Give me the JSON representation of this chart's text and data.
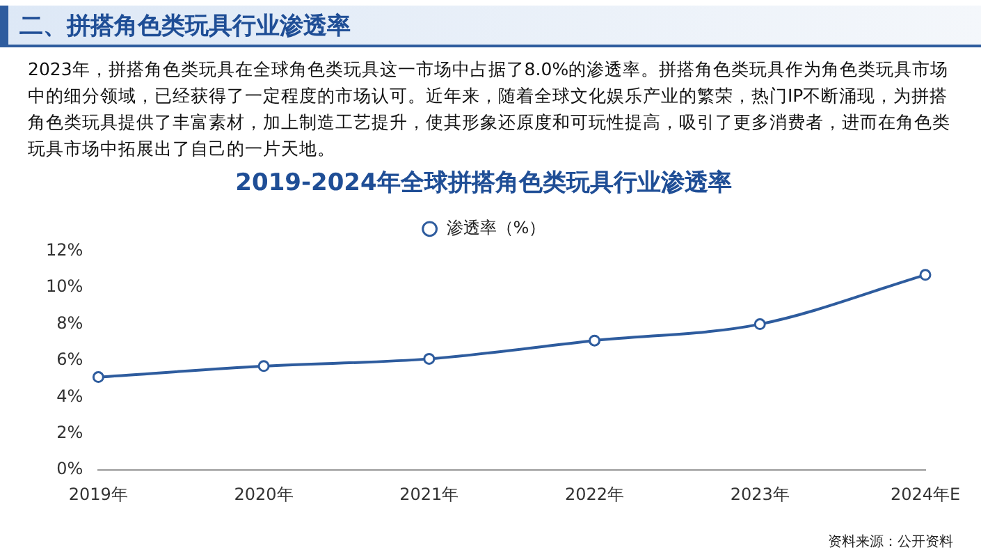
{
  "chart_data": {
    "type": "line",
    "title": "2019-2024年全球拼搭角色类玩具行业渗透率",
    "annotations": [
      "二、拼搭角色类玩具行业渗透率",
      "2023年，拼搭角色类玩具在全球角色类玩具这一市场中占据了8.0%的渗透率。拼搭角色类玩具作为角色类玩具市场中的细分领域，已经获得了一定程度的市场认可。近年来，随着全球文化娱乐产业的繁荣，热门IP不断涌现，为拼搭角色类玩具提供了丰富素材，加上制造工艺提升，使其形象还原度和可玩性提高，吸引了更多消费者，进而在角色类玩具市场中拓展出了自己的一片天地。",
      "资料来源：公开资料"
    ],
    "categories": [
      "2019年",
      "2020年",
      "2021年",
      "2022年",
      "2023年",
      "2024年E"
    ],
    "series": [
      {
        "name": "渗透率（%）",
        "color": "#2e5c9e",
        "values": [
          5.1,
          5.7,
          6.1,
          7.1,
          8.0,
          10.7
        ]
      }
    ],
    "ylim": [
      0,
      12
    ],
    "yticks": [
      {
        "value": 0,
        "label": "0%"
      },
      {
        "value": 2,
        "label": "2%"
      },
      {
        "value": 4,
        "label": "4%"
      },
      {
        "value": 6,
        "label": "6%"
      },
      {
        "value": 8,
        "label": "8%"
      },
      {
        "value": 10,
        "label": "10%"
      },
      {
        "value": 12,
        "label": "12%"
      }
    ],
    "grid": false,
    "legend": "top",
    "marker": "circle",
    "line_style": "solid"
  }
}
